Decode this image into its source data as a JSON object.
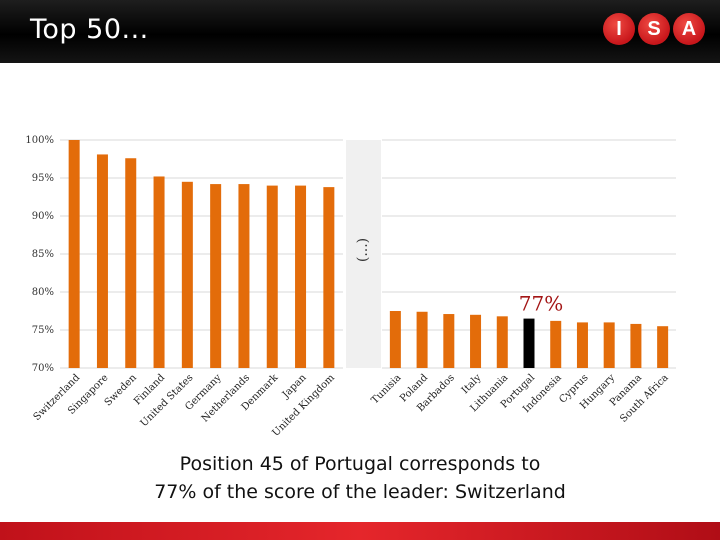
{
  "header": {
    "title": "Top 50...",
    "logo_letters": [
      "I",
      "S",
      "A"
    ],
    "background_color": "#000000",
    "logo_color": "#d71920"
  },
  "caption": {
    "line1": "Position 45 of Portugal corresponds to",
    "line2": "77% of the score of the leader: Switzerland"
  },
  "chart_data": {
    "type": "bar",
    "ylim": [
      70,
      100
    ],
    "yticks": [
      "100%",
      "95%",
      "90%",
      "85%",
      "80%",
      "75%",
      "70%"
    ],
    "ytick_values": [
      100,
      95,
      90,
      85,
      80,
      75,
      70
    ],
    "grid": true,
    "break_label": "(...)",
    "highlight_label": "77%",
    "bar_color": "#e36c0a",
    "highlight_color": "#000000",
    "highlight_label_color": "#a31515",
    "left_group": {
      "categories": [
        "Switzerland",
        "Singapore",
        "Sweden",
        "Finland",
        "United States",
        "Germany",
        "Netherlands",
        "Denmark",
        "Japan",
        "United Kingdom"
      ],
      "values": [
        100,
        98.1,
        97.6,
        95.2,
        94.5,
        94.2,
        94.2,
        94.0,
        94.0,
        93.8
      ]
    },
    "right_group": {
      "categories": [
        "Tunisia",
        "Poland",
        "Barbados",
        "Italy",
        "Lithuania",
        "Portugal",
        "Indonesia",
        "Cyprus",
        "Hungary",
        "Panama",
        "South Africa"
      ],
      "values": [
        77.5,
        77.4,
        77.1,
        77.0,
        76.8,
        76.5,
        76.2,
        76.0,
        76.0,
        75.8,
        75.5
      ],
      "highlight_index": 5
    }
  }
}
